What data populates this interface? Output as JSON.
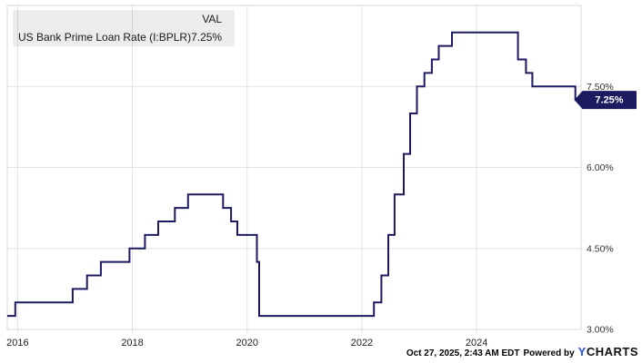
{
  "legend": {
    "series_name": "US Bank Prime Loan Rate (I:BPLR)",
    "val_header": "VAL",
    "value": "7.25%"
  },
  "footer": {
    "timestamp": "Oct 27, 2025, 2:43 AM EDT",
    "powered_by": "Powered by",
    "brand_y": "Y",
    "brand_rest": "CHARTS"
  },
  "colors": {
    "background": "#ffffff",
    "line": "#1c1a60",
    "tag_bg": "#1c1a60",
    "tag_text": "#ffffff",
    "grid": "#e3e3e3",
    "border": "#d9d9d9",
    "axis_text": "#333333",
    "x_tick_text": "#222222",
    "legend_bg": "rgba(0,0,0,0.075)",
    "legend_text": "#1a1a1a",
    "brand_blue": "#2d4ef0"
  },
  "chart_data": {
    "type": "line",
    "step": true,
    "title": "US Bank Prime Loan Rate (I:BPLR)",
    "grid": true,
    "legend_position": "top-left",
    "x_range": [
      2015.82,
      2025.82
    ],
    "y_range": [
      3.0,
      9.0
    ],
    "x_ticks": [
      {
        "label": "2016",
        "x": 2016
      },
      {
        "label": "2018",
        "x": 2018
      },
      {
        "label": "2020",
        "x": 2020
      },
      {
        "label": "2022",
        "x": 2022
      },
      {
        "label": "2024",
        "x": 2024
      }
    ],
    "y_ticks": [
      {
        "label": "3.00%",
        "value": 3.0
      },
      {
        "label": "4.50%",
        "value": 4.5
      },
      {
        "label": "6.00%",
        "value": 6.0
      },
      {
        "label": "7.50%",
        "value": 7.5
      }
    ],
    "last_value": {
      "label": "7.25%",
      "value": 7.25,
      "x": 2025.82
    },
    "series": [
      {
        "name": "US Bank Prime Loan Rate (I:BPLR)",
        "units": "percent",
        "step_points": [
          [
            2015.82,
            3.25
          ],
          [
            2015.96,
            3.5
          ],
          [
            2016.96,
            3.75
          ],
          [
            2017.21,
            4.0
          ],
          [
            2017.45,
            4.25
          ],
          [
            2017.95,
            4.5
          ],
          [
            2018.22,
            4.75
          ],
          [
            2018.45,
            5.0
          ],
          [
            2018.74,
            5.25
          ],
          [
            2018.97,
            5.5
          ],
          [
            2019.58,
            5.25
          ],
          [
            2019.72,
            5.0
          ],
          [
            2019.83,
            4.75
          ],
          [
            2020.17,
            4.25
          ],
          [
            2020.21,
            3.25
          ],
          [
            2022.21,
            3.5
          ],
          [
            2022.34,
            4.0
          ],
          [
            2022.46,
            4.75
          ],
          [
            2022.57,
            5.5
          ],
          [
            2022.73,
            6.25
          ],
          [
            2022.84,
            7.0
          ],
          [
            2022.96,
            7.5
          ],
          [
            2023.09,
            7.75
          ],
          [
            2023.22,
            8.0
          ],
          [
            2023.34,
            8.25
          ],
          [
            2023.57,
            8.5
          ],
          [
            2024.72,
            8.0
          ],
          [
            2024.86,
            7.75
          ],
          [
            2024.97,
            7.5
          ],
          [
            2025.72,
            7.25
          ]
        ]
      }
    ]
  }
}
